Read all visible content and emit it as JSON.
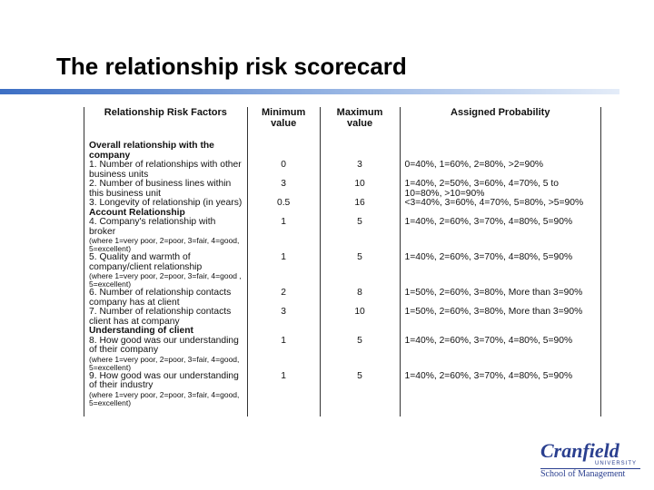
{
  "header": {
    "title": "The relationship risk scorecard"
  },
  "table": {
    "columns": [
      "Relationship Risk Factors",
      "Minimum value",
      "Maximum value",
      "Assigned Probability"
    ],
    "rows": [
      {
        "section": "Overall relationship with the company"
      },
      {
        "factor": "1. Number of relationships with other business units",
        "min": "0",
        "max": "3",
        "probability": "0=40%, 1=60%, 2=80%, >2=90%"
      },
      {
        "factor": "2. Number of business lines within this business unit",
        "min": "3",
        "max": "10",
        "probability": "1=40%, 2=50%, 3=60%, 4=70%, 5 to 10=80%, >10=90%"
      },
      {
        "factor": "3. Longevity of relationship (in years)",
        "min": "0.5",
        "max": "16",
        "probability": "<3=40%, 3=60%, 4=70%, 5=80%, >5=90%"
      },
      {
        "section": "Account Relationship"
      },
      {
        "factor": "4. Company's relationship with broker",
        "note": "(where 1=very poor, 2=poor, 3=fair, 4=good, 5=excellent)",
        "min": "1",
        "max": "5",
        "probability": "1=40%, 2=60%, 3=70%, 4=80%, 5=90%"
      },
      {
        "factor": "5. Quality and warmth of company/client relationship",
        "note": "(where 1=very poor, 2=poor, 3=fair, 4=good , 5=excellent)",
        "min": "1",
        "max": "5",
        "probability": "1=40%, 2=60%, 3=70%, 4=80%, 5=90%"
      },
      {
        "factor": "6. Number of relationship contacts company has at client",
        "min": "2",
        "max": "8",
        "probability": "1=50%, 2=60%, 3=80%, More than 3=90%"
      },
      {
        "factor": "7. Number of relationship contacts client has at company",
        "min": "3",
        "max": "10",
        "probability": "1=50%, 2=60%, 3=80%, More than 3=90%"
      },
      {
        "section": "Understanding of client"
      },
      {
        "factor": "8. How good was our understanding of their company",
        "note": "(where 1=very poor, 2=poor, 3=fair, 4=good, 5=excellent)",
        "min": "1",
        "max": "5",
        "probability": "1=40%, 2=60%, 3=70%, 4=80%, 5=90%"
      },
      {
        "factor": "9. How good was our understanding of their industry",
        "note": "(where 1=very poor, 2=poor, 3=fair, 4=good, 5=excellent)",
        "min": "1",
        "max": "5",
        "probability": "1=40%, 2=60%, 3=70%, 4=80%, 5=90%"
      }
    ]
  },
  "logo": {
    "name": "Cranfield",
    "sub": "UNIVERSITY",
    "school": "School of Management"
  }
}
